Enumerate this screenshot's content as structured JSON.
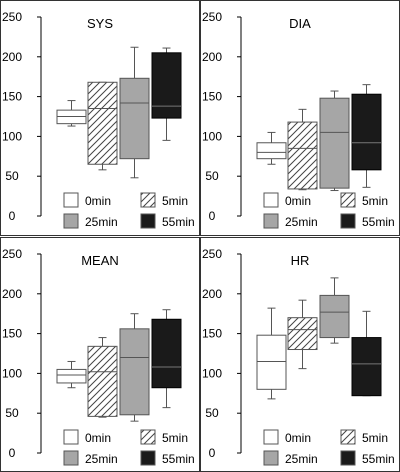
{
  "chart_data": [
    {
      "type": "box",
      "title": "SYS",
      "ylim": [
        0,
        250
      ],
      "yticks": [
        "0",
        "50",
        "100",
        "150",
        "200",
        "250"
      ],
      "series": [
        {
          "name": "0min",
          "whisker_low": 113,
          "q1": 116,
          "median": 125,
          "q3": 133,
          "whisker_high": 145
        },
        {
          "name": "5min",
          "whisker_low": 58,
          "q1": 65,
          "median": 135,
          "q3": 168,
          "whisker_high": 168
        },
        {
          "name": "25min",
          "whisker_low": 48,
          "q1": 72,
          "median": 142,
          "q3": 173,
          "whisker_high": 212
        },
        {
          "name": "55min",
          "whisker_low": 95,
          "q1": 123,
          "median": 138,
          "q3": 205,
          "whisker_high": 211
        }
      ]
    },
    {
      "type": "box",
      "title": "DIA",
      "ylim": [
        0,
        250
      ],
      "yticks": [
        "0",
        "50",
        "100",
        "150",
        "200",
        "250"
      ],
      "series": [
        {
          "name": "0min",
          "whisker_low": 65,
          "q1": 72,
          "median": 80,
          "q3": 92,
          "whisker_high": 105
        },
        {
          "name": "5min",
          "whisker_low": 33,
          "q1": 34,
          "median": 85,
          "q3": 118,
          "whisker_high": 134
        },
        {
          "name": "25min",
          "whisker_low": 32,
          "q1": 35,
          "median": 105,
          "q3": 148,
          "whisker_high": 157
        },
        {
          "name": "55min",
          "whisker_low": 36,
          "q1": 58,
          "median": 92,
          "q3": 153,
          "whisker_high": 165
        }
      ]
    },
    {
      "type": "box",
      "title": "MEAN",
      "ylim": [
        0,
        250
      ],
      "yticks": [
        "0",
        "50",
        "100",
        "150",
        "200",
        "250"
      ],
      "series": [
        {
          "name": "0min",
          "whisker_low": 82,
          "q1": 88,
          "median": 98,
          "q3": 105,
          "whisker_high": 115
        },
        {
          "name": "5min",
          "whisker_low": 45,
          "q1": 46,
          "median": 102,
          "q3": 134,
          "whisker_high": 145
        },
        {
          "name": "25min",
          "whisker_low": 40,
          "q1": 48,
          "median": 120,
          "q3": 156,
          "whisker_high": 175
        },
        {
          "name": "55min",
          "whisker_low": 57,
          "q1": 82,
          "median": 108,
          "q3": 168,
          "whisker_high": 180
        }
      ]
    },
    {
      "type": "box",
      "title": "HR",
      "ylim": [
        0,
        250
      ],
      "yticks": [
        "0",
        "50",
        "100",
        "150",
        "200",
        "250"
      ],
      "series": [
        {
          "name": "0min",
          "whisker_low": 68,
          "q1": 80,
          "median": 115,
          "q3": 148,
          "whisker_high": 182
        },
        {
          "name": "5min",
          "whisker_low": 106,
          "q1": 130,
          "median": 155,
          "q3": 170,
          "whisker_high": 192
        },
        {
          "name": "25min",
          "whisker_low": 138,
          "q1": 145,
          "median": 177,
          "q3": 198,
          "whisker_high": 220
        },
        {
          "name": "55min",
          "whisker_low": 72,
          "q1": 72,
          "median": 112,
          "q3": 145,
          "whisker_high": 178
        }
      ]
    }
  ],
  "legend": [
    {
      "label": "0min",
      "style": "white"
    },
    {
      "label": "5min",
      "style": "hatched"
    },
    {
      "label": "25min",
      "style": "gray"
    },
    {
      "label": "55min",
      "style": "black"
    }
  ],
  "colors": {
    "white": "#ffffff",
    "gray": "#a6a6a6",
    "black": "#1a1a1a",
    "stroke": "#555555",
    "panel_border": "#333333",
    "median_on_black": "#777777"
  }
}
